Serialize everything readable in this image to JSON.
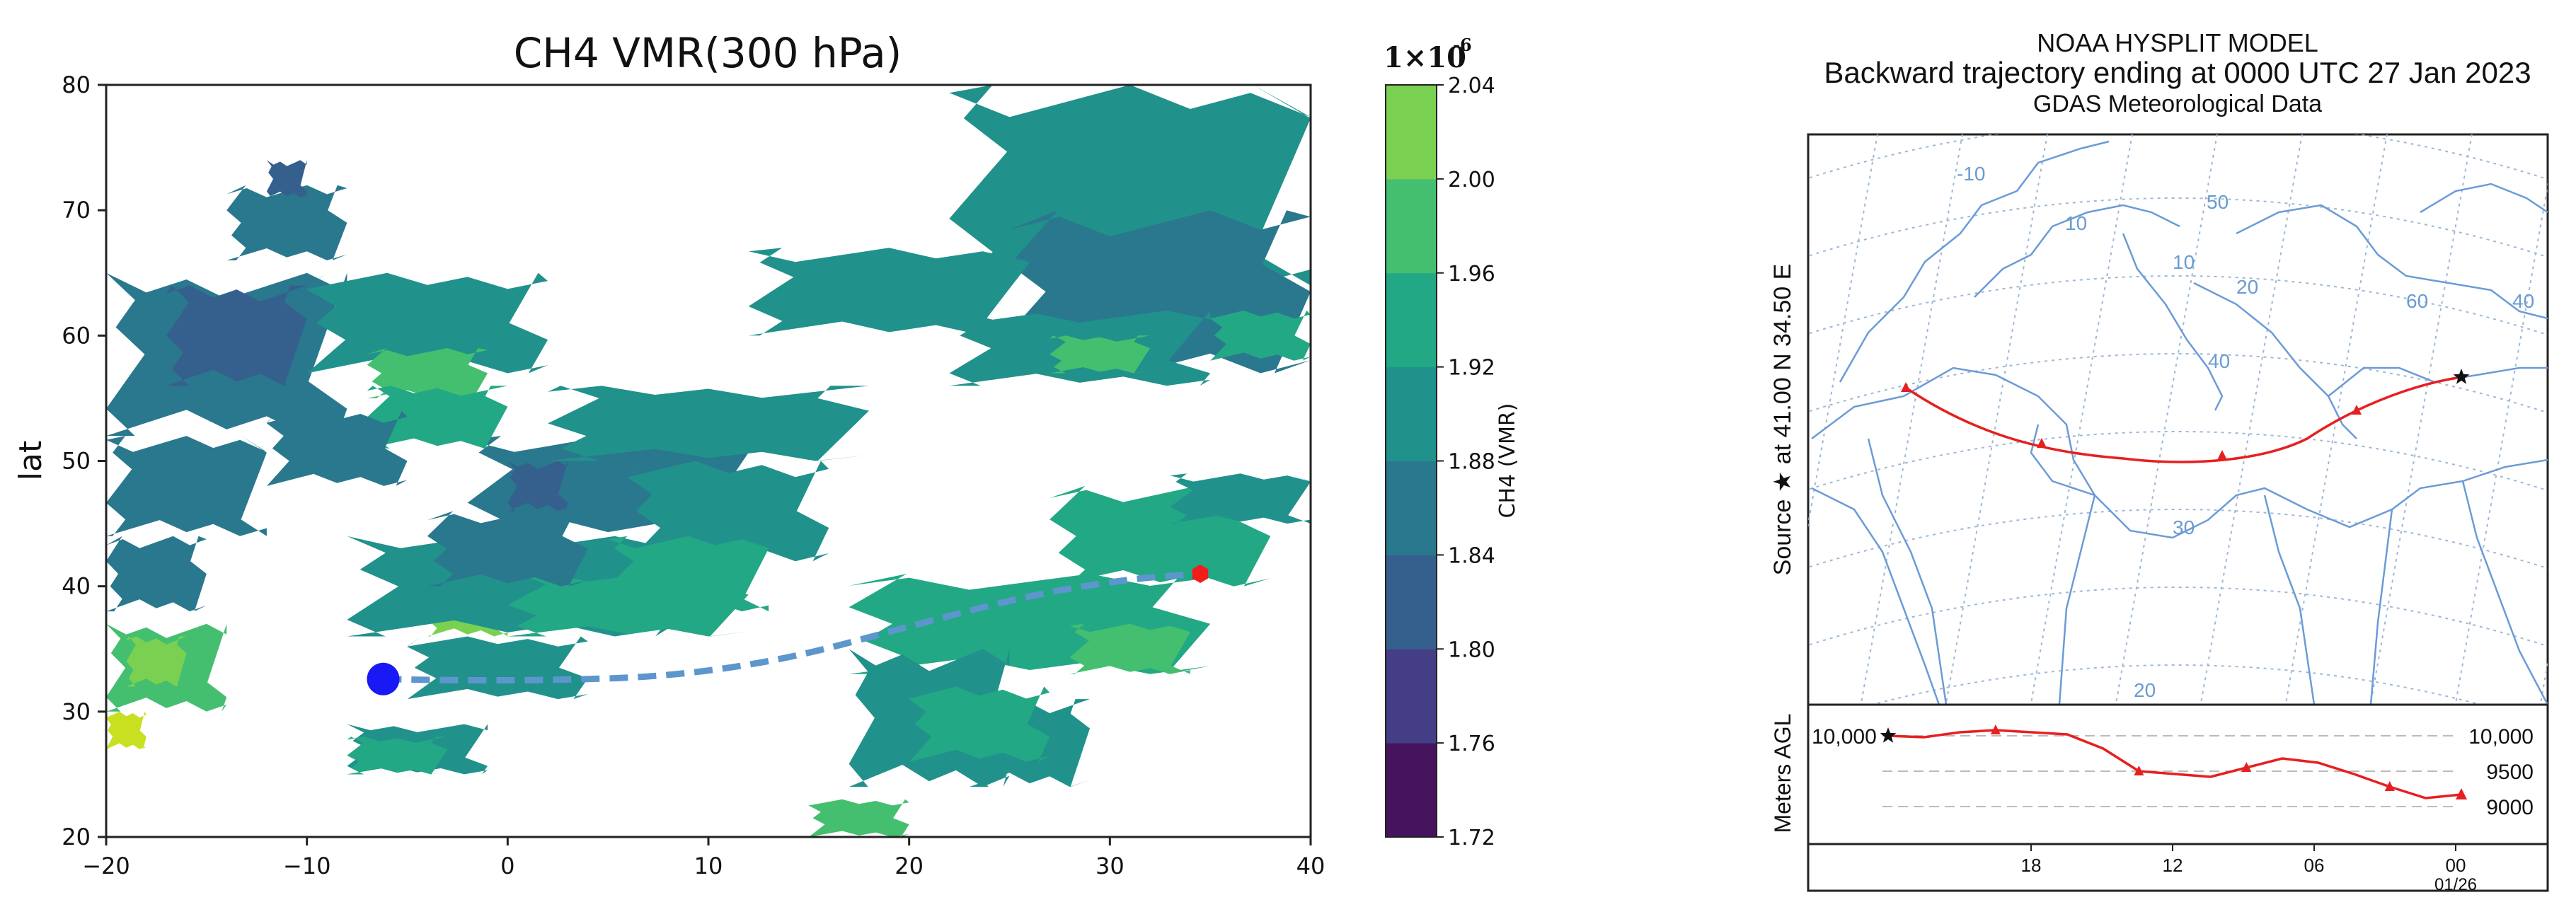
{
  "chart_data": [
    {
      "type": "heatmap",
      "title": "CH4 VMR(300 hPa)",
      "xlabel": "",
      "ylabel": "lat",
      "xlim": [
        -20,
        40
      ],
      "ylim": [
        20,
        80
      ],
      "x_ticks": [
        "−20",
        "−10",
        "0",
        "10",
        "20",
        "30",
        "40"
      ],
      "y_ticks": [
        "20",
        "30",
        "40",
        "50",
        "60",
        "70",
        "80"
      ],
      "colorbar": {
        "label": "CH4 (VMR)",
        "multiplier": "1×10",
        "exponent": "-6",
        "ticks": [
          "1.72",
          "1.76",
          "1.80",
          "1.84",
          "1.88",
          "1.92",
          "1.96",
          "2.00",
          "2.04"
        ],
        "colors": [
          "#46145f",
          "#433e85",
          "#35608d",
          "#2a788e",
          "#21918c",
          "#22a884",
          "#44bf70",
          "#7ad151",
          "#c8e020"
        ]
      },
      "trajectory": {
        "points": [
          [
            -6.2,
            32.6
          ],
          [
            -3,
            32.5
          ],
          [
            2,
            32.5
          ],
          [
            8,
            32.8
          ],
          [
            14,
            34.2
          ],
          [
            20,
            36.8
          ],
          [
            26,
            39.3
          ],
          [
            31,
            40.6
          ],
          [
            34.5,
            41.0
          ]
        ],
        "start_marker": [
          -6.2,
          32.6
        ],
        "end_marker": [
          34.5,
          41.0
        ]
      },
      "field_patches": [
        {
          "level": 3,
          "lon": [
            -20,
            -8
          ],
          "lat": [
            52,
            65
          ]
        },
        {
          "level": 2,
          "lon": [
            -17,
            -10
          ],
          "lat": [
            56,
            64
          ]
        },
        {
          "level": 4,
          "lon": [
            -10,
            2
          ],
          "lat": [
            57,
            65
          ]
        },
        {
          "level": 3,
          "lon": [
            -20,
            -12
          ],
          "lat": [
            44,
            52
          ]
        },
        {
          "level": 3,
          "lon": [
            -20,
            -15
          ],
          "lat": [
            38,
            44
          ]
        },
        {
          "level": 6,
          "lon": [
            -20,
            -14
          ],
          "lat": [
            30,
            37
          ]
        },
        {
          "level": 7,
          "lon": [
            -19,
            -16
          ],
          "lat": [
            32,
            36
          ]
        },
        {
          "level": 8,
          "lon": [
            -20,
            -18
          ],
          "lat": [
            27,
            30
          ]
        },
        {
          "level": 7,
          "lon": [
            -4,
            0
          ],
          "lat": [
            36,
            40
          ]
        },
        {
          "level": 6,
          "lon": [
            -7,
            -1
          ],
          "lat": [
            55,
            59
          ]
        },
        {
          "level": 4,
          "lon": [
            -8,
            8
          ],
          "lat": [
            36,
            44
          ]
        },
        {
          "level": 5,
          "lon": [
            0,
            12
          ],
          "lat": [
            36,
            41
          ]
        },
        {
          "level": 4,
          "lon": [
            -5,
            4
          ],
          "lat": [
            31,
            36
          ]
        },
        {
          "level": 3,
          "lon": [
            -2,
            12
          ],
          "lat": [
            44,
            52
          ]
        },
        {
          "level": 3,
          "lon": [
            -4,
            4
          ],
          "lat": [
            40,
            46
          ]
        },
        {
          "level": 2,
          "lon": [
            0,
            3
          ],
          "lat": [
            46,
            50
          ]
        },
        {
          "level": 4,
          "lon": [
            2,
            18
          ],
          "lat": [
            50,
            56
          ]
        },
        {
          "level": 4,
          "lon": [
            6,
            16
          ],
          "lat": [
            42,
            50
          ]
        },
        {
          "level": 5,
          "lon": [
            5,
            13
          ],
          "lat": [
            38,
            44
          ]
        },
        {
          "level": 5,
          "lon": [
            17,
            35
          ],
          "lat": [
            33,
            41
          ]
        },
        {
          "level": 4,
          "lon": [
            17,
            25
          ],
          "lat": [
            24,
            35
          ]
        },
        {
          "level": 4,
          "lon": [
            23,
            29
          ],
          "lat": [
            24,
            31
          ]
        },
        {
          "level": 5,
          "lon": [
            20,
            27
          ],
          "lat": [
            26,
            32
          ]
        },
        {
          "level": 6,
          "lon": [
            28,
            34
          ],
          "lat": [
            33,
            37
          ]
        },
        {
          "level": 5,
          "lon": [
            27,
            38
          ],
          "lat": [
            40,
            48
          ]
        },
        {
          "level": 4,
          "lon": [
            -8,
            -1
          ],
          "lat": [
            25,
            29
          ]
        },
        {
          "level": 5,
          "lon": [
            -8,
            -3
          ],
          "lat": [
            25,
            28
          ]
        },
        {
          "level": 6,
          "lon": [
            15,
            20
          ],
          "lat": [
            20,
            23
          ]
        },
        {
          "level": 4,
          "lon": [
            22,
            40
          ],
          "lat": [
            64,
            80
          ]
        },
        {
          "level": 3,
          "lon": [
            25,
            40
          ],
          "lat": [
            57,
            70
          ]
        },
        {
          "level": 4,
          "lon": [
            22,
            35
          ],
          "lat": [
            56,
            62
          ]
        },
        {
          "level": 6,
          "lon": [
            27,
            32
          ],
          "lat": [
            57,
            60
          ]
        },
        {
          "level": 5,
          "lon": [
            35,
            40
          ],
          "lat": [
            58,
            62
          ]
        },
        {
          "level": 4,
          "lon": [
            12,
            26
          ],
          "lat": [
            60,
            67
          ]
        },
        {
          "level": 3,
          "lon": [
            -14,
            -8
          ],
          "lat": [
            66,
            72
          ]
        },
        {
          "level": 2,
          "lon": [
            -12,
            -10
          ],
          "lat": [
            71,
            74
          ]
        },
        {
          "level": 5,
          "lon": [
            -7,
            0
          ],
          "lat": [
            51,
            56
          ]
        },
        {
          "level": 3,
          "lon": [
            -12,
            -5
          ],
          "lat": [
            48,
            54
          ]
        },
        {
          "level": 4,
          "lon": [
            33,
            40
          ],
          "lat": [
            45,
            49
          ]
        }
      ]
    },
    {
      "type": "line",
      "title": "NOAA HYSPLIT MODEL",
      "subtitle": "Backward trajectory ending at 0000 UTC 27 Jan 2023",
      "subtitle2": "GDAS Meteorological Data",
      "source_label": "Source ★  at   41.00 N   34.50 E",
      "ylabel": "Meters AGL",
      "y_ticks": [
        "10,000",
        "9500",
        "9000"
      ],
      "y_tick_left": "10,000",
      "x_ticks": [
        "18",
        "12",
        "06",
        "00"
      ],
      "x_subtick": "01/26",
      "map_labels": [
        "-10",
        "10",
        "50",
        "10",
        "20",
        "40",
        "60",
        "40",
        "30",
        "20"
      ],
      "height_series": {
        "x_hours": [
          -48,
          -45,
          -42,
          -39,
          -36,
          -33,
          -30,
          -27,
          -24,
          -21,
          -18,
          -15,
          -12,
          -9,
          -6,
          -3,
          0
        ],
        "meters": [
          10000,
          9980,
          10050,
          10080,
          10050,
          10020,
          9820,
          9500,
          9460,
          9420,
          9550,
          9680,
          9620,
          9460,
          9280,
          9120,
          9170
        ]
      }
    }
  ]
}
